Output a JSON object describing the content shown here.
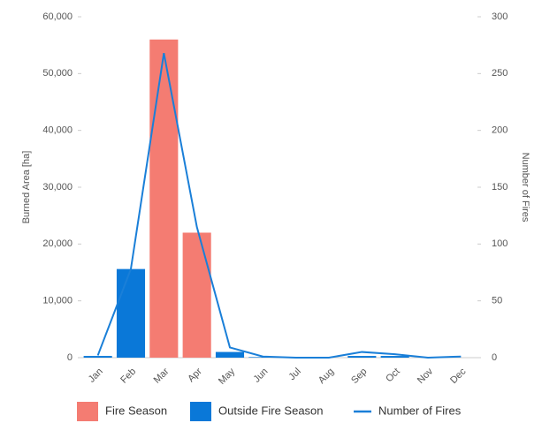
{
  "chart_data": {
    "type": "bar",
    "y_label": "Burned Area [ha]",
    "y2_label": "Number of Fires",
    "categories": [
      "Jan",
      "Feb",
      "Mar",
      "Apr",
      "May",
      "Jun",
      "Jul",
      "Aug",
      "Sep",
      "Oct",
      "Nov",
      "Dec"
    ],
    "series": [
      {
        "name": "Fire Season",
        "type": "bar",
        "color": "#f47c72",
        "values": [
          null,
          null,
          56000,
          22000,
          null,
          null,
          null,
          null,
          null,
          null,
          null,
          null
        ]
      },
      {
        "name": "Outside Fire Season",
        "type": "bar",
        "color": "#0a78d8",
        "values": [
          300,
          15600,
          null,
          null,
          1000,
          100,
          0,
          0,
          300,
          300,
          0,
          0
        ]
      },
      {
        "name": "Number of Fires",
        "type": "line",
        "axis": "y2",
        "color": "#1a7fd8",
        "values": [
          2,
          78,
          268,
          115,
          9,
          1,
          0,
          0,
          5,
          3,
          0,
          1
        ]
      }
    ],
    "ylim": [
      0,
      60000
    ],
    "yticks": [
      0,
      {
        "value": 10000,
        "label": "10,000"
      },
      {
        "value": 20000,
        "label": "20,000"
      },
      {
        "value": 30000,
        "label": "30,000"
      },
      {
        "value": 40000,
        "label": "40,000"
      },
      {
        "value": 50000,
        "label": "50,000"
      },
      {
        "value": 60000,
        "label": "60,000"
      }
    ],
    "y2lim": [
      0,
      300
    ],
    "y2ticks": [
      0,
      50,
      100,
      150,
      200,
      250,
      300
    ],
    "legend": "bottom"
  }
}
